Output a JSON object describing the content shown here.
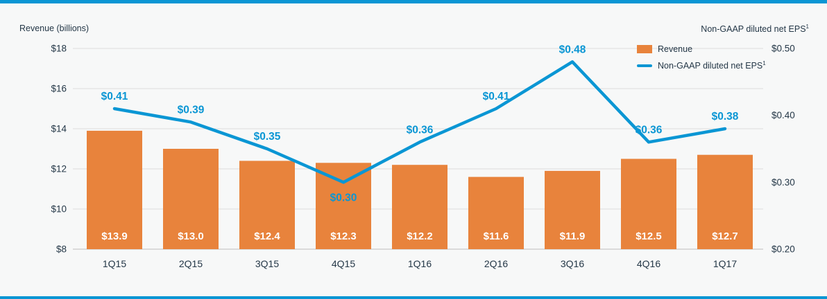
{
  "chart_data": {
    "type": "bar",
    "subtype": "bar+line combo, dual axis",
    "categories": [
      "1Q15",
      "2Q15",
      "3Q15",
      "4Q15",
      "1Q16",
      "2Q16",
      "3Q16",
      "4Q16",
      "1Q17"
    ],
    "series": [
      {
        "name": "Revenue",
        "render": "bar",
        "axis": "left",
        "values": [
          13.9,
          13.0,
          12.4,
          12.3,
          12.2,
          11.6,
          11.9,
          12.5,
          12.7
        ],
        "labels": [
          "$13.9",
          "$13.0",
          "$12.4",
          "$12.3",
          "$12.2",
          "$11.6",
          "$11.9",
          "$12.5",
          "$12.7"
        ],
        "color": "#E8833C"
      },
      {
        "name": "Non-GAAP diluted net EPS",
        "render": "line",
        "axis": "right",
        "values": [
          0.41,
          0.39,
          0.35,
          0.3,
          0.36,
          0.41,
          0.48,
          0.36,
          0.38
        ],
        "labels": [
          "$0.41",
          "$0.39",
          "$0.35",
          "$0.30",
          "$0.36",
          "$0.41",
          "$0.48",
          "$0.36",
          "$0.38"
        ],
        "label_below_indices": [
          3
        ],
        "color": "#0A96D4"
      }
    ],
    "left_axis": {
      "title": "Revenue (billions)",
      "ticks": [
        "$18",
        "$16",
        "$14",
        "$12",
        "$10",
        "$8"
      ],
      "tick_values": [
        18,
        16,
        14,
        12,
        10,
        8
      ],
      "min": 8,
      "max": 18
    },
    "right_axis": {
      "title": "Non-GAAP diluted net EPS",
      "title_sup": "1",
      "ticks": [
        "$0.50",
        "$0.40",
        "$0.30",
        "$0.20"
      ],
      "tick_values": [
        0.5,
        0.4,
        0.3,
        0.2
      ],
      "min": 0.2,
      "max": 0.5
    },
    "legend": [
      {
        "label": "Revenue",
        "sup": "",
        "swatch": "bar",
        "color": "#E8833C"
      },
      {
        "label": "Non-GAAP diluted net EPS",
        "sup": "1",
        "swatch": "line",
        "color": "#0A96D4"
      }
    ],
    "grid": "horizontal gridlines at left-axis ticks",
    "legend_position": "top-right inside plot"
  },
  "colors": {
    "accent_blue": "#0A96D4",
    "bar_orange": "#E8833C",
    "background": "#f7f8f8",
    "gridline": "#dcdcdc",
    "baseline": "#bdbdbd",
    "text": "#243747"
  }
}
